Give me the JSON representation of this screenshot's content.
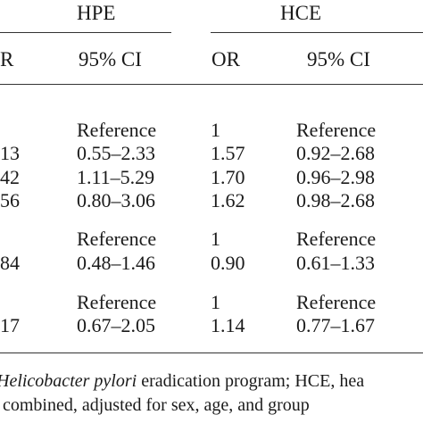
{
  "table": {
    "group_headers": {
      "hpe": "HPE",
      "hce": "HCE"
    },
    "subheaders": {
      "hpe_or_partial": "R",
      "hpe_ci": "95% CI",
      "hce_or": "OR",
      "hce_ci": "95% CI"
    },
    "rows": [
      {
        "hpe_or": "",
        "hpe_ci": "Reference",
        "hce_or": "1",
        "hce_ci": "Reference"
      },
      {
        "hpe_or": "13",
        "hpe_ci": "0.55–2.33",
        "hce_or": "1.57",
        "hce_ci": "0.92–2.68"
      },
      {
        "hpe_or": "42",
        "hpe_ci": "1.11–5.29",
        "hce_or": "1.70",
        "hce_ci": "0.96–2.98"
      },
      {
        "hpe_or": "56",
        "hpe_ci": "0.80–3.06",
        "hce_or": "1.62",
        "hce_ci": "0.98–2.68"
      },
      {
        "hpe_or": "",
        "hpe_ci": "Reference",
        "hce_or": "1",
        "hce_ci": "Reference"
      },
      {
        "hpe_or": "84",
        "hpe_ci": "0.48–1.46",
        "hce_or": "0.90",
        "hce_ci": "0.61–1.33"
      },
      {
        "hpe_or": "",
        "hpe_ci": "Reference",
        "hce_or": "1",
        "hce_ci": "Reference"
      },
      {
        "hpe_or": "17",
        "hpe_ci": "0.67–2.05",
        "hce_or": "1.14",
        "hce_ci": "0.77–1.67"
      }
    ]
  },
  "footnote": {
    "line1_italic": "Helicobacter pylori",
    "line1_rest": " eradication program; HCE, hea",
    "line2": "combined, adjusted for sex, age, and group"
  }
}
